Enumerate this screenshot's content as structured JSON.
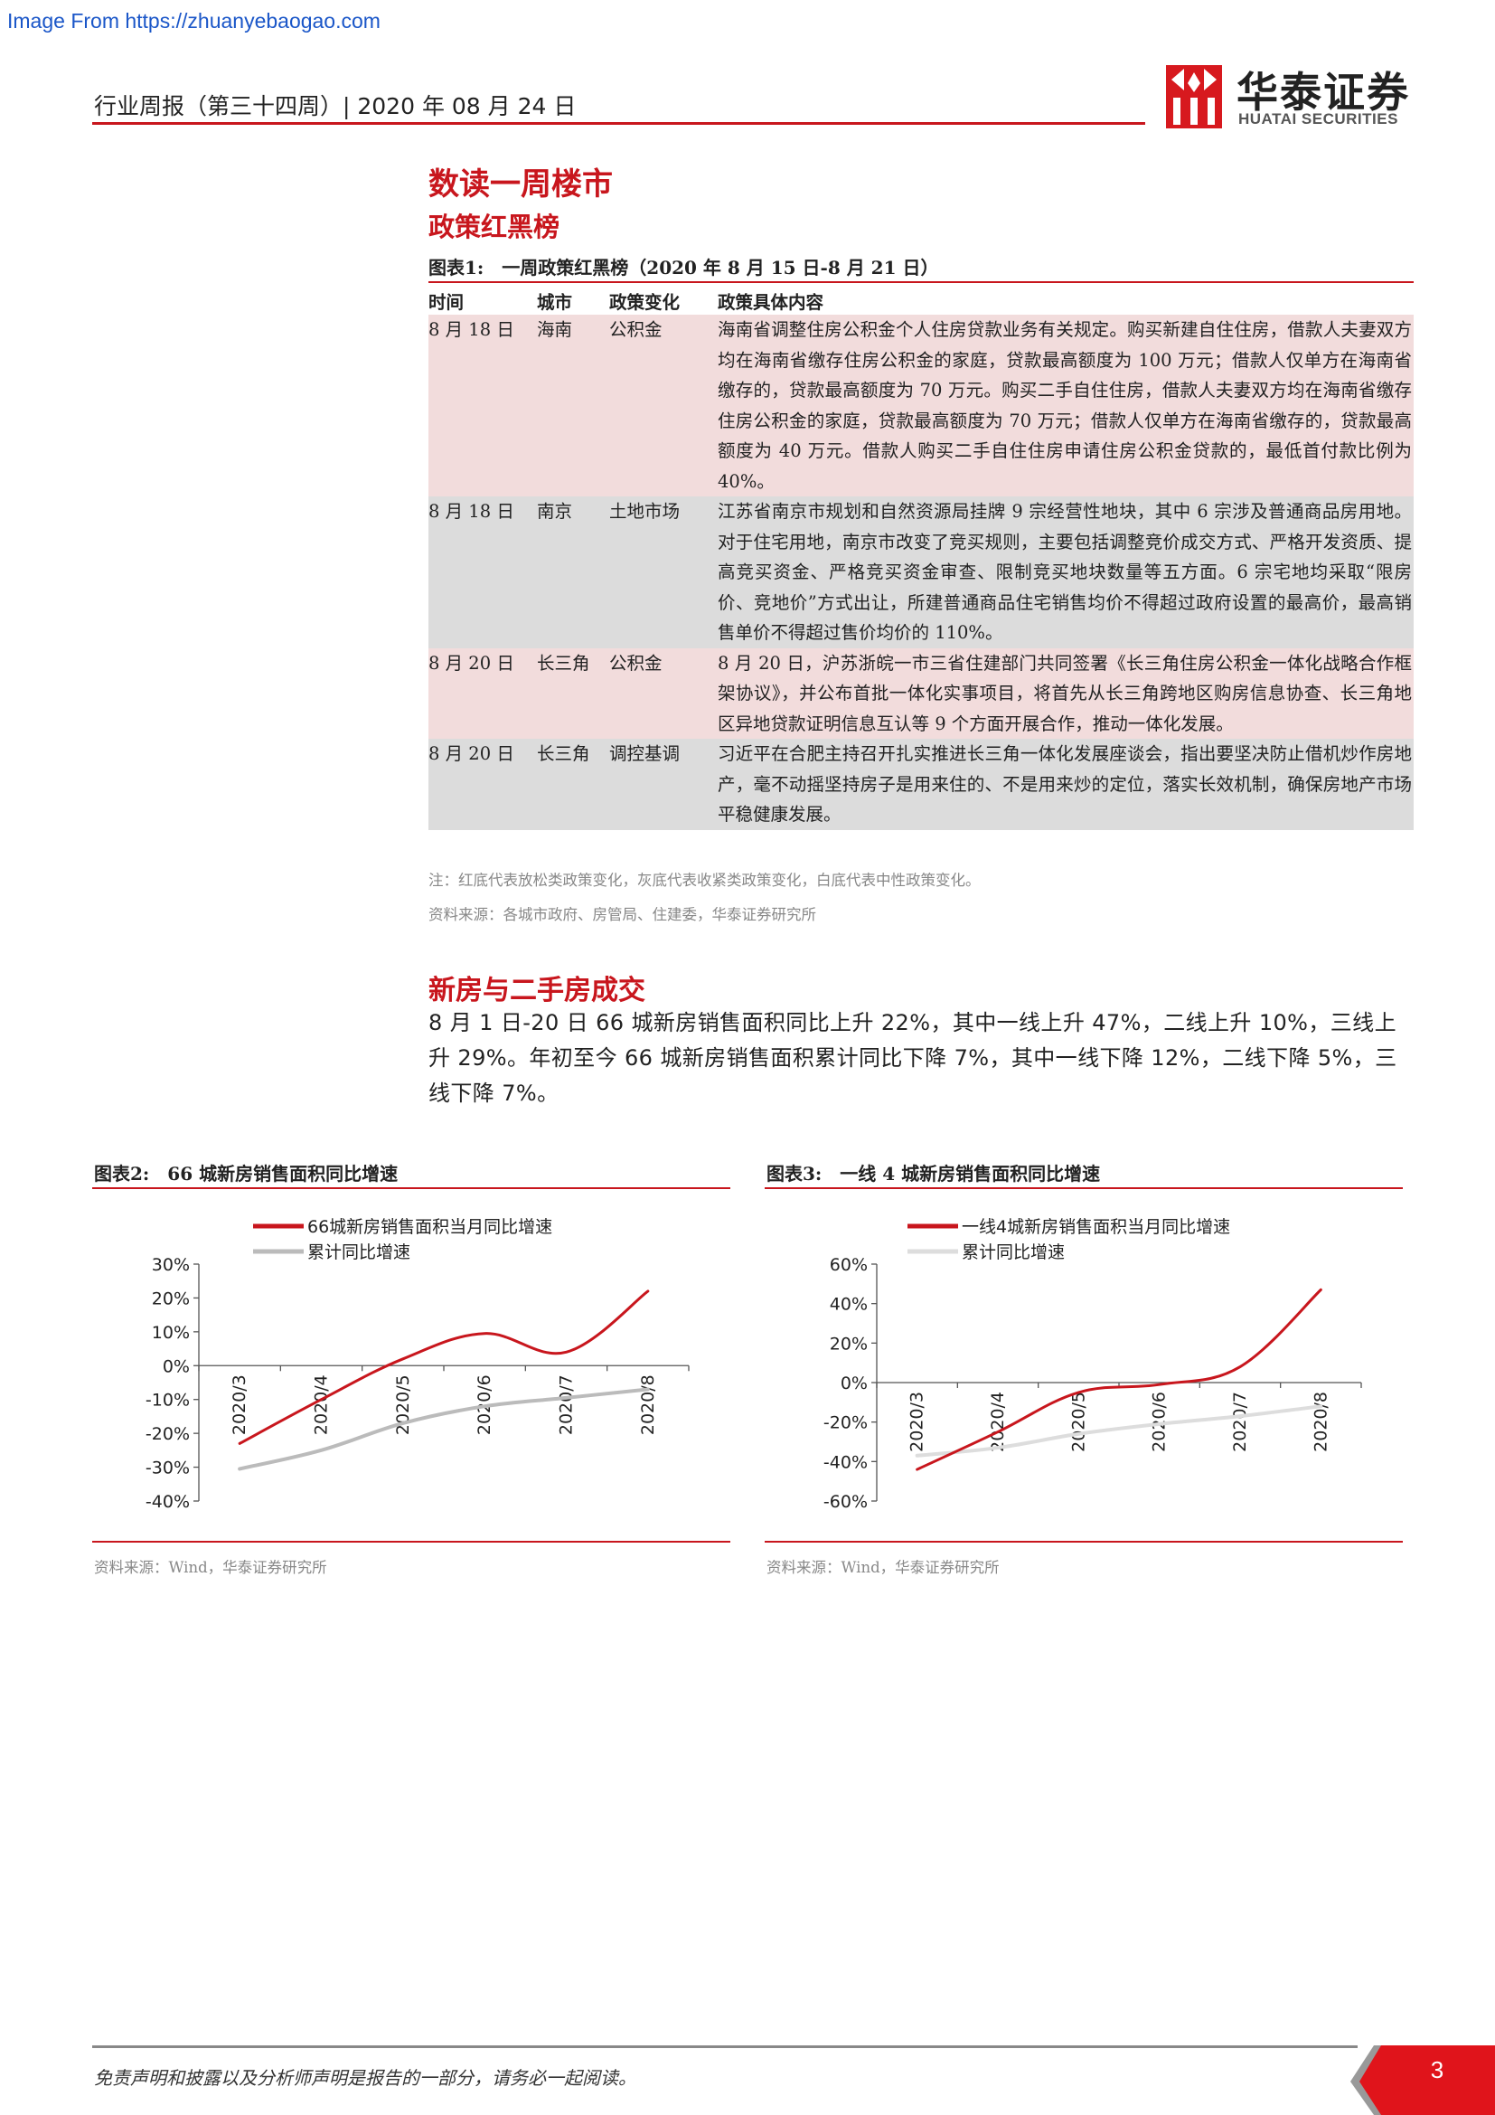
{
  "watermark": "Image From https://zhuanyebaogao.com",
  "header": {
    "report_info": "行业周报（第三十四周）| 2020 年 08 月 24 日",
    "logo_cn": "华泰证券",
    "logo_en": "HUATAI SECURITIES",
    "brand_color": "#c8161d"
  },
  "section": {
    "title": "数读一周楼市",
    "subtitle": "政策红黑榜"
  },
  "figure1": {
    "title": "图表1:　一周政策红黑榜（2020 年 8 月 15 日-8 月 21 日）",
    "columns": [
      "时间",
      "城市",
      "政策变化",
      "政策具体内容"
    ],
    "rows": [
      {
        "date": "8 月 18 日",
        "city": "海南",
        "change": "公积金",
        "tone": "red",
        "content": "海南省调整住房公积金个人住房贷款业务有关规定。购买新建自住住房，借款人夫妻双方均在海南省缴存住房公积金的家庭，贷款最高额度为 100 万元；借款人仅单方在海南省缴存的，贷款最高额度为 70 万元。购买二手自住住房，借款人夫妻双方均在海南省缴存住房公积金的家庭，贷款最高额度为 70 万元；借款人仅单方在海南省缴存的，贷款最高额度为 40 万元。借款人购买二手自住住房申请住房公积金贷款的，最低首付款比例为 40%。"
      },
      {
        "date": "8 月 18 日",
        "city": "南京",
        "change": "土地市场",
        "tone": "gray",
        "content": "江苏省南京市规划和自然资源局挂牌 9 宗经营性地块，其中 6 宗涉及普通商品房用地。对于住宅用地，南京市改变了竞买规则，主要包括调整竞价成交方式、严格开发资质、提高竞买资金、严格竞买资金审查、限制竞买地块数量等五方面。6 宗宅地均采取“限房价、竞地价”方式出让，所建普通商品住宅销售均价不得超过政府设置的最高价，最高销售单价不得超过售价均价的 110%。"
      },
      {
        "date": "8 月 20 日",
        "city": "长三角",
        "change": "公积金",
        "tone": "red",
        "content": "8 月 20 日，沪苏浙皖一市三省住建部门共同签署《长三角住房公积金一体化战略合作框架协议》，并公布首批一体化实事项目，将首先从长三角跨地区购房信息协查、长三角地区异地贷款证明信息互认等 9 个方面开展合作，推动一体化发展。"
      },
      {
        "date": "8 月 20 日",
        "city": "长三角",
        "change": "调控基调",
        "tone": "gray",
        "content": "习近平在合肥主持召开扎实推进长三角一体化发展座谈会，指出要坚决防止借机炒作房地产，毫不动摇坚持房子是用来住的、不是用来炒的定位，落实长效机制，确保房地产市场平稳健康发展。"
      }
    ],
    "note": "注：红底代表放松类政策变化，灰底代表收紧类政策变化，白底代表中性政策变化。",
    "source": "资料来源：各城市政府、房管局、住建委，华泰证券研究所",
    "red_color": "#f2dcdc",
    "gray_color": "#dcdcdc"
  },
  "section2": {
    "title": "新房与二手房成交",
    "paragraph": "8 月 1 日-20 日 66 城新房销售面积同比上升 22%，其中一线上升 47%，二线上升 10%，三线上升 29%。年初至今 66 城新房销售面积累计同比下降 7%，其中一线下降 12%，二线下降 5%，三线下降 7%。"
  },
  "figure2": {
    "title": "图表2:　66 城新房销售面积同比增速",
    "source": "资料来源：Wind，华泰证券研究所"
  },
  "figure3": {
    "title": "图表3:　一线 4 城新房销售面积同比增速",
    "source": "资料来源：Wind，华泰证券研究所"
  },
  "chart_data": [
    {
      "type": "line",
      "x": [
        "2020/3",
        "2020/4",
        "2020/5",
        "2020/6",
        "2020/7",
        "2020/8"
      ],
      "series": [
        {
          "name": "66城新房销售面积当月同比增速",
          "values": [
            -23,
            -10,
            2,
            9.5,
            4,
            22
          ],
          "color": "#c8161d"
        },
        {
          "name": "累计同比增速",
          "values": [
            -30.5,
            -25,
            -17,
            -12,
            -9.5,
            -7
          ],
          "color": "#bbbbbb"
        }
      ],
      "yticks": [
        "30%",
        "20%",
        "10%",
        "0%",
        "-10%",
        "-20%",
        "-30%",
        "-40%"
      ],
      "ylim": [
        -40,
        30
      ],
      "legend": "top"
    },
    {
      "type": "line",
      "x": [
        "2020/3",
        "2020/4",
        "2020/5",
        "2020/6",
        "2020/7",
        "2020/8"
      ],
      "series": [
        {
          "name": "一线4城新房销售面积当月同比增速",
          "values": [
            -44,
            -25,
            -5,
            -1,
            8,
            47
          ],
          "color": "#c8161d"
        },
        {
          "name": "累计同比增速",
          "values": [
            -37,
            -33,
            -26,
            -21,
            -17,
            -12
          ],
          "color": "#dddddd"
        }
      ],
      "yticks": [
        "60%",
        "40%",
        "20%",
        "0%",
        "-20%",
        "-40%",
        "-60%"
      ],
      "ylim": [
        -60,
        60
      ],
      "legend": "top"
    }
  ],
  "footer": {
    "disclaimer": "免责声明和披露以及分析师声明是报告的一部分，请务必一起阅读。",
    "page": "3"
  }
}
